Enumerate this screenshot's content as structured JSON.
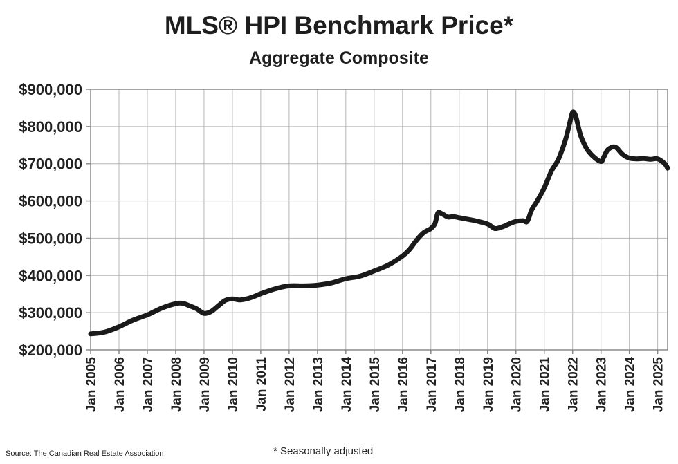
{
  "chart_data": {
    "type": "line",
    "title": "MLS® HPI Benchmark Price*",
    "subtitle": "Aggregate Composite",
    "xlabel": "",
    "ylabel": "",
    "ylim": [
      200000,
      900000
    ],
    "y_ticks": [
      200000,
      300000,
      400000,
      500000,
      600000,
      700000,
      800000,
      900000
    ],
    "y_tick_labels": [
      "$200,000",
      "$300,000",
      "$400,000",
      "$500,000",
      "$600,000",
      "$700,000",
      "$800,000",
      "$900,000"
    ],
    "x_range": [
      2005.0,
      2025.35
    ],
    "x_ticks": [
      2005,
      2006,
      2007,
      2008,
      2009,
      2010,
      2011,
      2012,
      2013,
      2014,
      2015,
      2016,
      2017,
      2018,
      2019,
      2020,
      2021,
      2022,
      2023,
      2024,
      2025
    ],
    "x_tick_labels": [
      "Jan 2005",
      "Jan 2006",
      "Jan 2007",
      "Jan 2008",
      "Jan 2009",
      "Jan 2010",
      "Jan 2011",
      "Jan 2012",
      "Jan 2013",
      "Jan 2014",
      "Jan 2015",
      "Jan 2016",
      "Jan 2017",
      "Jan 2018",
      "Jan 2019",
      "Jan 2020",
      "Jan 2021",
      "Jan 2022",
      "Jan 2023",
      "Jan 2024",
      "Jan 2025"
    ],
    "grid": true,
    "series": [
      {
        "name": "MLS HPI Aggregate Composite",
        "color": "#1a1a1a",
        "x": [
          2005.0,
          2005.5,
          2006.0,
          2006.5,
          2007.0,
          2007.5,
          2008.0,
          2008.25,
          2008.5,
          2008.75,
          2009.0,
          2009.25,
          2009.5,
          2009.75,
          2010.0,
          2010.25,
          2010.5,
          2010.75,
          2011.0,
          2011.5,
          2012.0,
          2012.5,
          2013.0,
          2013.5,
          2014.0,
          2014.5,
          2015.0,
          2015.5,
          2016.0,
          2016.25,
          2016.5,
          2016.75,
          2017.0,
          2017.15,
          2017.25,
          2017.4,
          2017.6,
          2017.8,
          2018.0,
          2018.5,
          2019.0,
          2019.25,
          2019.5,
          2019.75,
          2020.0,
          2020.25,
          2020.4,
          2020.55,
          2020.75,
          2021.0,
          2021.25,
          2021.5,
          2021.75,
          2021.9,
          2022.0,
          2022.1,
          2022.2,
          2022.3,
          2022.5,
          2022.75,
          2023.0,
          2023.1,
          2023.25,
          2023.5,
          2023.75,
          2024.0,
          2024.25,
          2024.5,
          2024.75,
          2025.0,
          2025.25,
          2025.35
        ],
        "values": [
          243000,
          248000,
          262000,
          280000,
          294000,
          312000,
          324000,
          325000,
          318000,
          310000,
          298000,
          303000,
          318000,
          333000,
          337000,
          334000,
          337000,
          343000,
          351000,
          364000,
          372000,
          372000,
          374000,
          380000,
          391000,
          398000,
          412000,
          428000,
          452000,
          470000,
          495000,
          515000,
          526000,
          540000,
          568000,
          565000,
          557000,
          558000,
          555000,
          548000,
          538000,
          526000,
          530000,
          538000,
          545000,
          547000,
          545000,
          575000,
          600000,
          635000,
          680000,
          712000,
          765000,
          810000,
          838000,
          830000,
          800000,
          772000,
          740000,
          718000,
          706000,
          718000,
          738000,
          745000,
          726000,
          715000,
          713000,
          714000,
          712000,
          713000,
          700000,
          688000
        ]
      }
    ]
  },
  "footer": {
    "source": "Source: The Canadian Real Estate Association",
    "note": "* Seasonally adjusted"
  }
}
